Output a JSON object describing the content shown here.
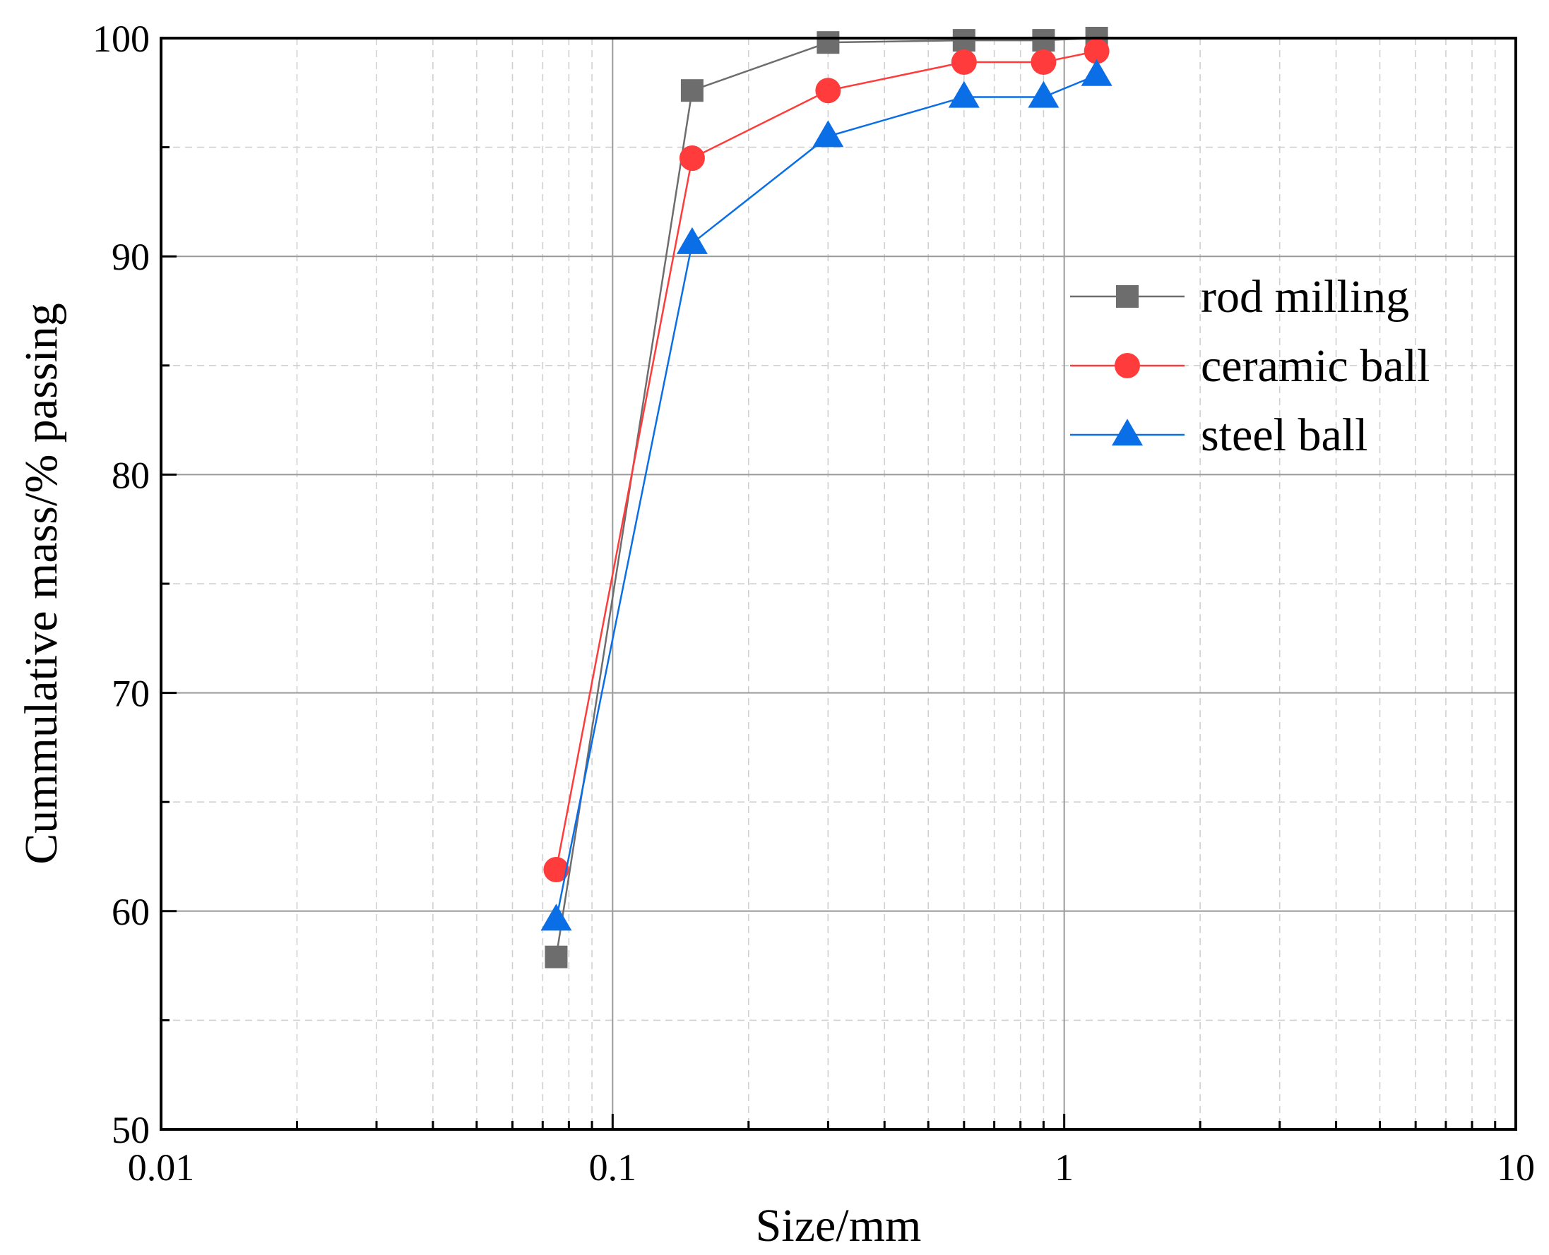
{
  "chart_data": {
    "type": "line",
    "title": "",
    "xlabel": "Size/mm",
    "ylabel": "Cummulative mass/% passing",
    "x_scale": "log",
    "xlim": [
      0.01,
      10
    ],
    "ylim": [
      50,
      100
    ],
    "x_ticks": [
      0.01,
      0.1,
      1,
      10
    ],
    "x_tick_labels": [
      "0.01",
      "0.1",
      "1",
      "10"
    ],
    "y_ticks": [
      50,
      60,
      70,
      80,
      90,
      100
    ],
    "y_tick_labels": [
      "50",
      "60",
      "70",
      "80",
      "90",
      "100"
    ],
    "grid": true,
    "legend_position": "right",
    "series": [
      {
        "name": "rod milling",
        "color": "#6d6d6d",
        "marker": "square",
        "x": [
          0.075,
          0.15,
          0.3,
          0.6,
          0.9,
          1.18
        ],
        "y": [
          57.9,
          97.6,
          99.8,
          99.9,
          99.9,
          100.0
        ]
      },
      {
        "name": "ceramic ball",
        "color": "#ff3b3b",
        "marker": "circle",
        "x": [
          0.075,
          0.15,
          0.3,
          0.6,
          0.9,
          1.18
        ],
        "y": [
          61.9,
          94.5,
          97.6,
          98.9,
          98.9,
          99.4
        ]
      },
      {
        "name": "steel ball",
        "color": "#0a6ee6",
        "marker": "triangle",
        "x": [
          0.075,
          0.15,
          0.3,
          0.6,
          0.9,
          1.18
        ],
        "y": [
          59.6,
          90.6,
          95.5,
          97.3,
          97.3,
          98.3
        ]
      }
    ]
  }
}
